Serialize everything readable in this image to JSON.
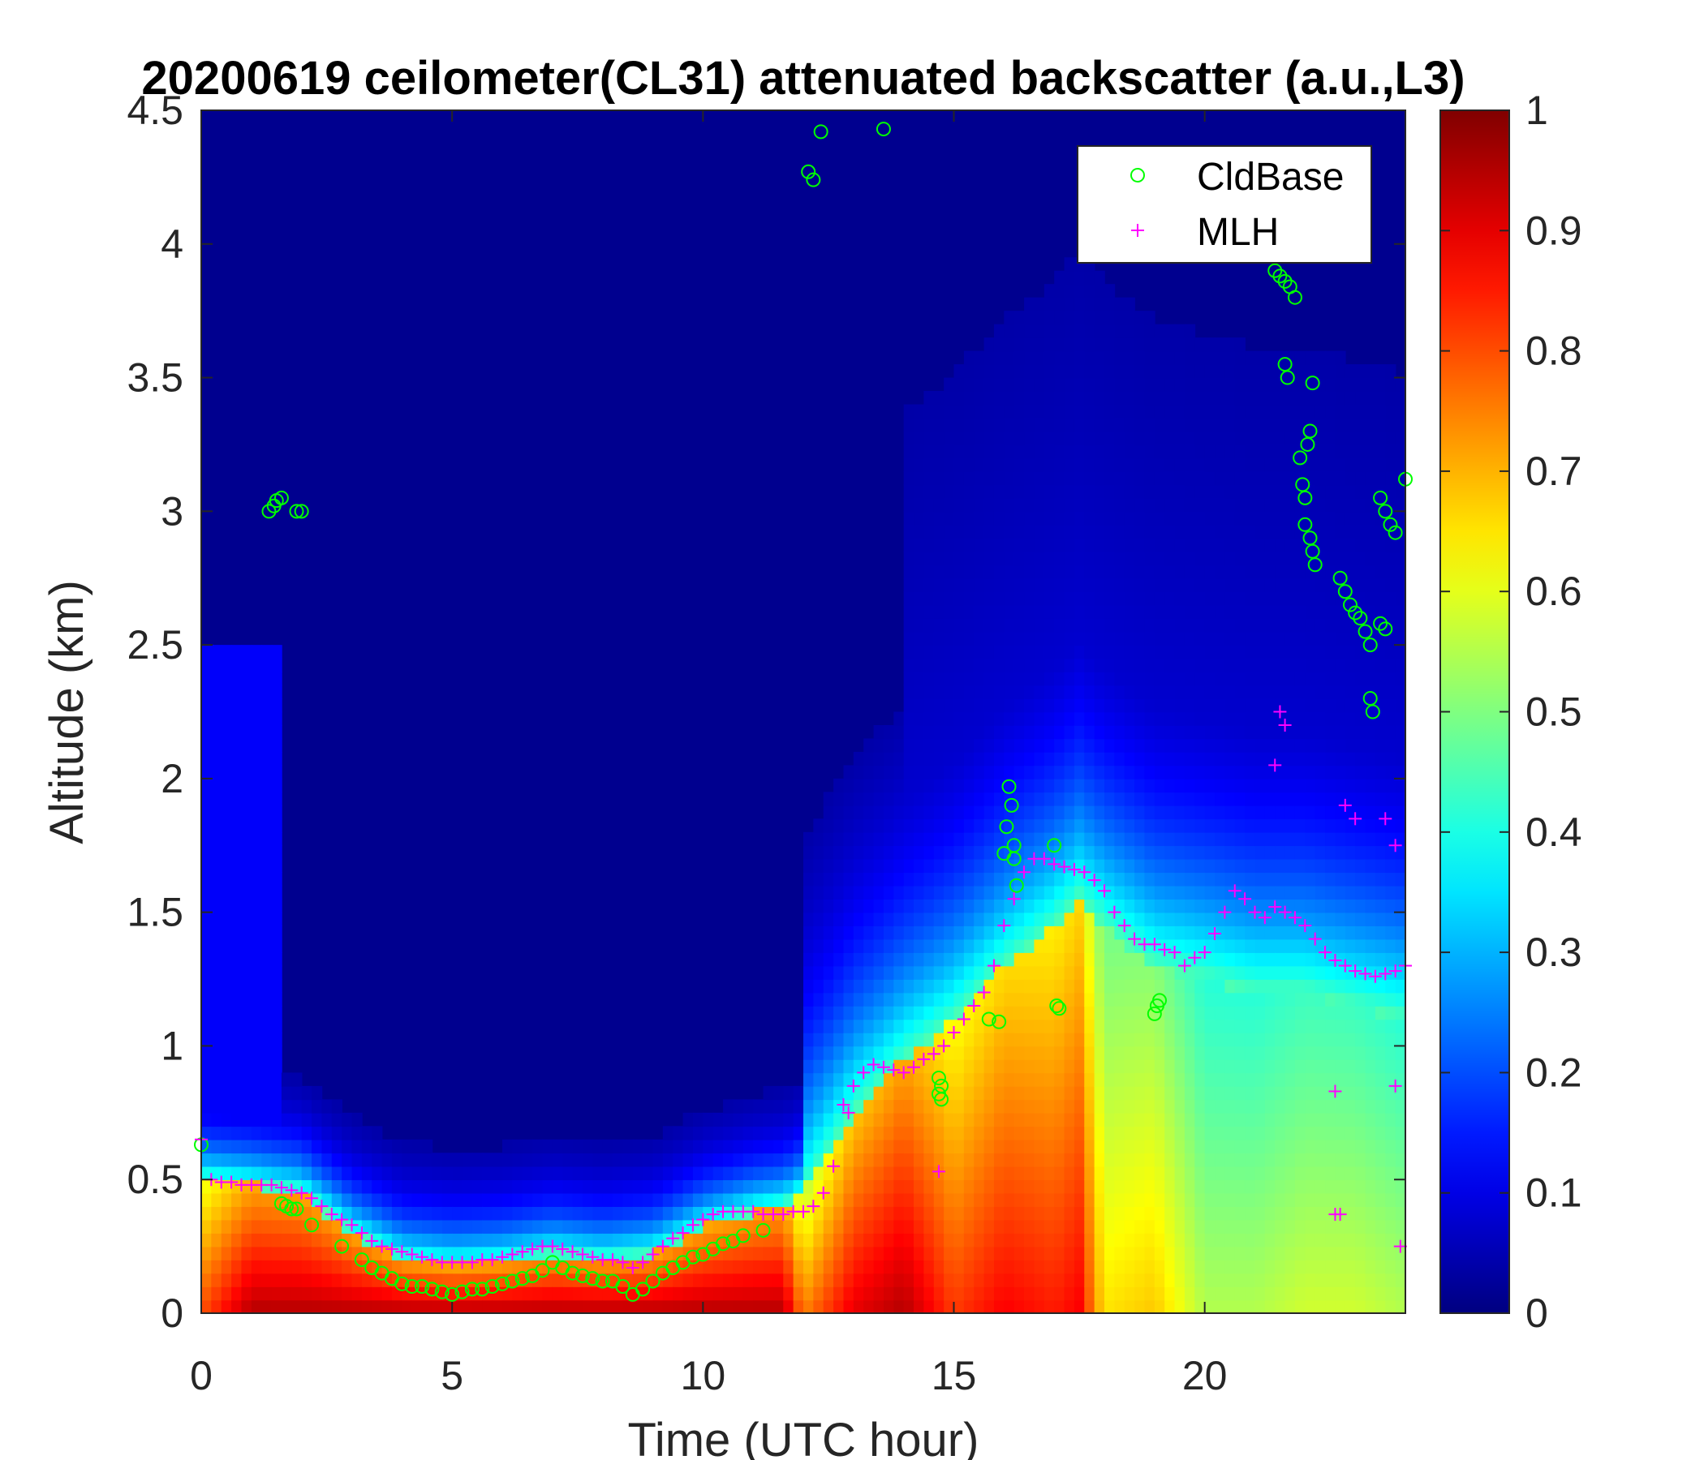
{
  "chart_data": {
    "type": "heatmap",
    "title": "20200619 ceilometer(CL31) attenuated backscatter (a.u.,L3)",
    "xlabel": "Time (UTC hour)",
    "ylabel": "Altitude (km)",
    "xlim": [
      0,
      24
    ],
    "ylim": [
      0,
      4.5
    ],
    "x_ticks": [
      0,
      5,
      10,
      15,
      20
    ],
    "x_tick_labels": [
      "0",
      "5",
      "10",
      "15",
      "20"
    ],
    "y_ticks": [
      0,
      0.5,
      1,
      1.5,
      2,
      2.5,
      3,
      3.5,
      4,
      4.5
    ],
    "y_tick_labels": [
      "0",
      "0.5",
      "1",
      "1.5",
      "2",
      "2.5",
      "3",
      "3.5",
      "4",
      "4.5"
    ],
    "colorbar": {
      "colormap": "jet",
      "clim": [
        0,
        1
      ],
      "ticks": [
        0,
        0.1,
        0.2,
        0.3,
        0.4,
        0.5,
        0.6,
        0.7,
        0.8,
        0.9,
        1
      ],
      "tick_labels": [
        "0",
        "0.1",
        "0.2",
        "0.3",
        "0.4",
        "0.5",
        "0.6",
        "0.7",
        "0.8",
        "0.9",
        "1"
      ]
    },
    "legend": {
      "location": "top-right",
      "entries": [
        {
          "label": "CldBase",
          "marker": "circle",
          "color": "#00ff00"
        },
        {
          "label": "MLH",
          "marker": "plus",
          "color": "#ff00ff"
        }
      ]
    },
    "background_layer": {
      "time": [
        0,
        1,
        2,
        3,
        4,
        5,
        6,
        7,
        8,
        9,
        10,
        11,
        11.6,
        12,
        13,
        14,
        15,
        16,
        17,
        17.5,
        18,
        19,
        20,
        21,
        22,
        23,
        24
      ],
      "layer_top_km": [
        0.5,
        0.48,
        0.45,
        0.3,
        0.2,
        0.18,
        0.19,
        0.22,
        0.2,
        0.22,
        0.32,
        0.38,
        0.4,
        0.45,
        0.75,
        0.95,
        1.1,
        1.3,
        1.45,
        1.55,
        1.45,
        1.3,
        1.25,
        1.2,
        1.2,
        1.15,
        1.1
      ],
      "peak_backscatter": [
        0.8,
        0.95,
        0.95,
        0.95,
        0.95,
        0.95,
        0.95,
        0.95,
        0.95,
        0.95,
        0.95,
        0.95,
        0.95,
        0.75,
        0.9,
        0.95,
        0.82,
        0.88,
        0.85,
        0.88,
        0.65,
        0.68,
        0.55,
        0.55,
        0.58,
        0.58,
        0.55
      ]
    },
    "series": [
      {
        "name": "CldBase",
        "marker": "circle",
        "color": "#00ff00",
        "points": [
          [
            0.0,
            0.63
          ],
          [
            1.6,
            0.41
          ],
          [
            1.7,
            0.4
          ],
          [
            1.8,
            0.39
          ],
          [
            1.9,
            0.39
          ],
          [
            2.2,
            0.33
          ],
          [
            2.8,
            0.25
          ],
          [
            3.2,
            0.2
          ],
          [
            3.4,
            0.17
          ],
          [
            3.6,
            0.15
          ],
          [
            3.8,
            0.13
          ],
          [
            4.0,
            0.11
          ],
          [
            4.2,
            0.1
          ],
          [
            4.4,
            0.1
          ],
          [
            4.6,
            0.09
          ],
          [
            4.8,
            0.08
          ],
          [
            5.0,
            0.07
          ],
          [
            5.2,
            0.08
          ],
          [
            5.4,
            0.09
          ],
          [
            5.6,
            0.09
          ],
          [
            5.8,
            0.1
          ],
          [
            6.0,
            0.11
          ],
          [
            6.2,
            0.12
          ],
          [
            6.4,
            0.13
          ],
          [
            6.6,
            0.14
          ],
          [
            6.8,
            0.16
          ],
          [
            7.0,
            0.19
          ],
          [
            7.2,
            0.17
          ],
          [
            7.4,
            0.15
          ],
          [
            7.6,
            0.14
          ],
          [
            7.8,
            0.13
          ],
          [
            8.0,
            0.12
          ],
          [
            8.2,
            0.12
          ],
          [
            8.4,
            0.1
          ],
          [
            8.6,
            0.07
          ],
          [
            8.8,
            0.09
          ],
          [
            9.0,
            0.12
          ],
          [
            9.2,
            0.15
          ],
          [
            9.4,
            0.17
          ],
          [
            9.6,
            0.19
          ],
          [
            9.8,
            0.21
          ],
          [
            10.0,
            0.22
          ],
          [
            10.2,
            0.24
          ],
          [
            10.4,
            0.26
          ],
          [
            10.6,
            0.27
          ],
          [
            10.8,
            0.29
          ],
          [
            11.2,
            0.31
          ],
          [
            1.35,
            3.0
          ],
          [
            1.45,
            3.02
          ],
          [
            1.5,
            3.04
          ],
          [
            1.6,
            3.05
          ],
          [
            1.9,
            3.0
          ],
          [
            2.0,
            3.0
          ],
          [
            12.1,
            4.27
          ],
          [
            12.2,
            4.24
          ],
          [
            12.35,
            4.42
          ],
          [
            13.6,
            4.43
          ],
          [
            14.7,
            0.82
          ],
          [
            14.75,
            0.85
          ],
          [
            14.7,
            0.88
          ],
          [
            14.75,
            0.8
          ],
          [
            15.7,
            1.1
          ],
          [
            15.9,
            1.09
          ],
          [
            16.0,
            1.72
          ],
          [
            16.05,
            1.82
          ],
          [
            16.1,
            1.97
          ],
          [
            16.15,
            1.9
          ],
          [
            16.2,
            1.75
          ],
          [
            16.2,
            1.7
          ],
          [
            16.25,
            1.6
          ],
          [
            17.0,
            1.75
          ],
          [
            17.05,
            1.15
          ],
          [
            17.1,
            1.14
          ],
          [
            19.0,
            1.12
          ],
          [
            19.05,
            1.15
          ],
          [
            19.1,
            1.17
          ],
          [
            21.4,
            3.9
          ],
          [
            21.5,
            3.88
          ],
          [
            21.6,
            3.86
          ],
          [
            21.7,
            3.84
          ],
          [
            21.8,
            3.8
          ],
          [
            21.6,
            3.55
          ],
          [
            21.65,
            3.5
          ],
          [
            21.9,
            3.2
          ],
          [
            21.95,
            3.1
          ],
          [
            22.0,
            3.05
          ],
          [
            22.0,
            2.95
          ],
          [
            22.1,
            2.9
          ],
          [
            22.15,
            2.85
          ],
          [
            22.2,
            2.8
          ],
          [
            22.1,
            3.3
          ],
          [
            22.15,
            3.48
          ],
          [
            22.05,
            3.25
          ],
          [
            22.7,
            2.75
          ],
          [
            22.8,
            2.7
          ],
          [
            22.9,
            2.65
          ],
          [
            23.0,
            2.62
          ],
          [
            23.1,
            2.6
          ],
          [
            23.2,
            2.55
          ],
          [
            23.3,
            2.5
          ],
          [
            23.5,
            2.58
          ],
          [
            23.6,
            2.56
          ],
          [
            23.3,
            2.3
          ],
          [
            23.35,
            2.25
          ],
          [
            23.5,
            3.05
          ],
          [
            23.6,
            3.0
          ],
          [
            23.7,
            2.95
          ],
          [
            23.8,
            2.92
          ],
          [
            24.0,
            3.12
          ]
        ]
      },
      {
        "name": "MLH",
        "marker": "plus",
        "color": "#ff00ff",
        "points": [
          [
            0.0,
            0.65
          ],
          [
            0.2,
            0.5
          ],
          [
            0.4,
            0.49
          ],
          [
            0.6,
            0.49
          ],
          [
            0.8,
            0.48
          ],
          [
            1.0,
            0.48
          ],
          [
            1.2,
            0.48
          ],
          [
            1.4,
            0.48
          ],
          [
            1.6,
            0.47
          ],
          [
            1.8,
            0.46
          ],
          [
            2.0,
            0.45
          ],
          [
            2.2,
            0.43
          ],
          [
            2.4,
            0.4
          ],
          [
            2.6,
            0.37
          ],
          [
            2.8,
            0.35
          ],
          [
            3.0,
            0.33
          ],
          [
            3.2,
            0.3
          ],
          [
            3.4,
            0.27
          ],
          [
            3.6,
            0.25
          ],
          [
            3.8,
            0.24
          ],
          [
            4.0,
            0.23
          ],
          [
            4.2,
            0.22
          ],
          [
            4.4,
            0.21
          ],
          [
            4.6,
            0.2
          ],
          [
            4.8,
            0.19
          ],
          [
            5.0,
            0.19
          ],
          [
            5.2,
            0.19
          ],
          [
            5.4,
            0.19
          ],
          [
            5.6,
            0.2
          ],
          [
            5.8,
            0.2
          ],
          [
            6.0,
            0.21
          ],
          [
            6.2,
            0.22
          ],
          [
            6.4,
            0.23
          ],
          [
            6.6,
            0.24
          ],
          [
            6.8,
            0.25
          ],
          [
            7.0,
            0.25
          ],
          [
            7.2,
            0.24
          ],
          [
            7.4,
            0.23
          ],
          [
            7.6,
            0.22
          ],
          [
            7.8,
            0.21
          ],
          [
            8.0,
            0.2
          ],
          [
            8.2,
            0.2
          ],
          [
            8.4,
            0.19
          ],
          [
            8.6,
            0.17
          ],
          [
            8.8,
            0.19
          ],
          [
            9.0,
            0.22
          ],
          [
            9.2,
            0.25
          ],
          [
            9.4,
            0.28
          ],
          [
            9.6,
            0.3
          ],
          [
            9.8,
            0.33
          ],
          [
            10.0,
            0.35
          ],
          [
            10.2,
            0.37
          ],
          [
            10.4,
            0.38
          ],
          [
            10.6,
            0.38
          ],
          [
            10.8,
            0.38
          ],
          [
            11.0,
            0.38
          ],
          [
            11.2,
            0.37
          ],
          [
            11.4,
            0.37
          ],
          [
            11.6,
            0.37
          ],
          [
            11.8,
            0.38
          ],
          [
            12.0,
            0.38
          ],
          [
            12.2,
            0.4
          ],
          [
            12.4,
            0.45
          ],
          [
            12.6,
            0.55
          ],
          [
            12.8,
            0.78
          ],
          [
            13.0,
            0.85
          ],
          [
            13.2,
            0.9
          ],
          [
            13.4,
            0.93
          ],
          [
            13.6,
            0.92
          ],
          [
            13.8,
            0.91
          ],
          [
            14.0,
            0.9
          ],
          [
            14.2,
            0.92
          ],
          [
            14.4,
            0.95
          ],
          [
            14.6,
            0.97
          ],
          [
            14.8,
            1.0
          ],
          [
            15.0,
            1.05
          ],
          [
            15.2,
            1.1
          ],
          [
            15.4,
            1.15
          ],
          [
            15.6,
            1.2
          ],
          [
            15.8,
            1.3
          ],
          [
            16.0,
            1.45
          ],
          [
            16.2,
            1.55
          ],
          [
            16.4,
            1.65
          ],
          [
            16.6,
            1.7
          ],
          [
            16.8,
            1.7
          ],
          [
            17.0,
            1.68
          ],
          [
            17.2,
            1.67
          ],
          [
            17.4,
            1.66
          ],
          [
            17.6,
            1.65
          ],
          [
            17.8,
            1.62
          ],
          [
            18.0,
            1.58
          ],
          [
            18.2,
            1.5
          ],
          [
            18.4,
            1.45
          ],
          [
            18.6,
            1.4
          ],
          [
            18.8,
            1.38
          ],
          [
            19.0,
            1.38
          ],
          [
            19.2,
            1.36
          ],
          [
            19.4,
            1.35
          ],
          [
            19.6,
            1.3
          ],
          [
            19.8,
            1.33
          ],
          [
            20.0,
            1.35
          ],
          [
            20.2,
            1.42
          ],
          [
            20.4,
            1.5
          ],
          [
            20.6,
            1.58
          ],
          [
            20.8,
            1.55
          ],
          [
            21.0,
            1.5
          ],
          [
            21.2,
            1.48
          ],
          [
            21.4,
            1.52
          ],
          [
            21.6,
            1.5
          ],
          [
            21.8,
            1.48
          ],
          [
            22.0,
            1.45
          ],
          [
            22.2,
            1.4
          ],
          [
            22.4,
            1.35
          ],
          [
            22.6,
            1.32
          ],
          [
            22.8,
            1.3
          ],
          [
            23.0,
            1.28
          ],
          [
            23.2,
            1.27
          ],
          [
            23.4,
            1.26
          ],
          [
            23.6,
            1.27
          ],
          [
            23.8,
            1.28
          ],
          [
            24.0,
            1.3
          ],
          [
            21.5,
            2.25
          ],
          [
            21.6,
            2.2
          ],
          [
            21.4,
            2.05
          ],
          [
            22.8,
            1.9
          ],
          [
            23.0,
            1.85
          ],
          [
            23.6,
            1.85
          ],
          [
            23.8,
            1.75
          ],
          [
            22.6,
            0.83
          ],
          [
            22.6,
            0.37
          ],
          [
            22.7,
            0.37
          ],
          [
            23.8,
            0.85
          ],
          [
            23.9,
            0.25
          ],
          [
            14.7,
            0.53
          ],
          [
            12.9,
            0.75
          ]
        ]
      }
    ]
  }
}
